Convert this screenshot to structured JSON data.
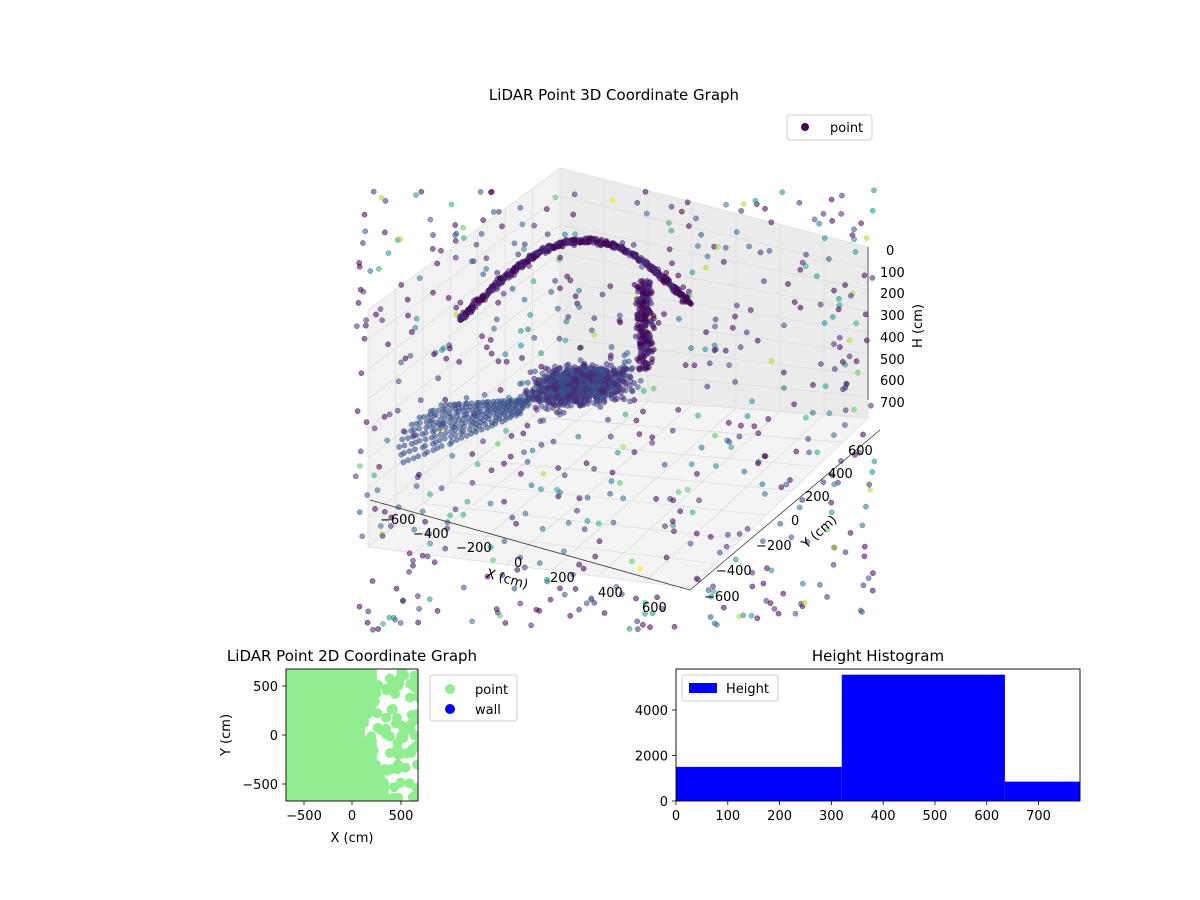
{
  "chart_data": [
    {
      "type": "scatter",
      "projection": "3d",
      "title": "LiDAR Point 3D Coordinate Graph",
      "xlabel": "X (cm)",
      "ylabel": "Y (cm)",
      "zlabel": "H (cm)",
      "x_ticks": [
        "−600",
        "−400",
        "−200",
        "0",
        "200",
        "400",
        "600"
      ],
      "y_ticks": [
        "−600",
        "−400",
        "−200",
        "0",
        "200",
        "400",
        "600"
      ],
      "z_ticks": [
        "0",
        "100",
        "200",
        "300",
        "400",
        "500",
        "600",
        "700"
      ],
      "xlim": [
        -700,
        700
      ],
      "ylim": [
        -700,
        700
      ],
      "zlim": [
        0,
        700
      ],
      "z_inverted": true,
      "grid": true,
      "colormap": "viridis",
      "legend": {
        "position": "top-right",
        "entries": [
          {
            "label": "point",
            "color": "#440154"
          }
        ]
      }
    },
    {
      "type": "scatter",
      "title": "LiDAR Point 2D Coordinate Graph",
      "xlabel": "X (cm)",
      "ylabel": "Y (cm)",
      "x_ticks": [
        "−500",
        "0",
        "500"
      ],
      "y_ticks": [
        "500",
        "0",
        "−500"
      ],
      "xlim": [
        -680,
        680
      ],
      "ylim": [
        -680,
        680
      ],
      "legend": {
        "position": "outside-right",
        "entries": [
          {
            "label": "point",
            "color": "#90ee90"
          },
          {
            "label": "wall",
            "color": "#0000ff"
          }
        ]
      }
    },
    {
      "type": "bar",
      "title": "Height Histogram",
      "categories": [
        "0–320",
        "320–635",
        "635–780"
      ],
      "bin_edges": [
        0,
        320,
        635,
        780
      ],
      "series": [
        {
          "name": "Height",
          "values": [
            1500,
            5550,
            850
          ],
          "color": "#0000ff"
        }
      ],
      "x_ticks": [
        "0",
        "100",
        "200",
        "300",
        "400",
        "500",
        "600",
        "700"
      ],
      "y_ticks": [
        "0",
        "2000",
        "4000"
      ],
      "xlim": [
        0,
        780
      ],
      "ylim": [
        0,
        5800
      ],
      "legend": {
        "position": "top-left"
      }
    }
  ]
}
